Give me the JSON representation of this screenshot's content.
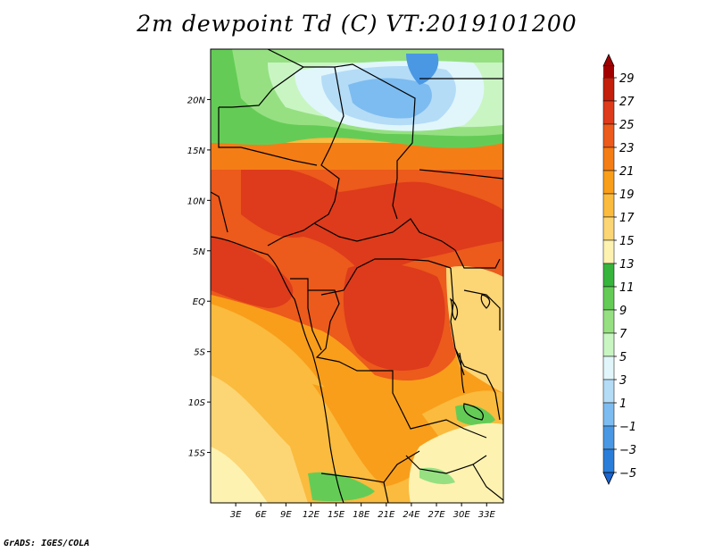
{
  "title": "2m dewpoint Td (C) VT:2019101200",
  "credit": "GrADS: IGES/COLA",
  "map": {
    "lat_labels": [
      "20N",
      "15N",
      "10N",
      "5N",
      "EQ",
      "5S",
      "10S",
      "15S"
    ],
    "lat_values": [
      20,
      15,
      10,
      5,
      0,
      -5,
      -10,
      -15
    ],
    "lon_labels": [
      "3E",
      "6E",
      "9E",
      "12E",
      "15E",
      "18E",
      "21E",
      "24E",
      "27E",
      "30E",
      "33E"
    ],
    "lon_values": [
      3,
      6,
      9,
      12,
      15,
      18,
      21,
      24,
      27,
      30,
      33
    ],
    "lon_range": [
      0,
      35
    ],
    "lat_range": [
      -20,
      25
    ]
  },
  "colorbar": {
    "levels": [
      "29",
      "27",
      "25",
      "23",
      "21",
      "19",
      "17",
      "15",
      "13",
      "11",
      "9",
      "7",
      "5",
      "3",
      "1",
      "−1",
      "−3",
      "−5"
    ],
    "colors": [
      "#a00000",
      "#c31f0c",
      "#dd3b1b",
      "#ec5a1c",
      "#f57d16",
      "#f99e1a",
      "#fabb3e",
      "#fcd575",
      "#fef2b1",
      "#37b43c",
      "#64cc56",
      "#96e082",
      "#c9f5c3",
      "#e0f6fb",
      "#b4dcf7",
      "#7dbcf0",
      "#4a98e4",
      "#2a7ed9",
      "#1a64d0"
    ]
  }
}
